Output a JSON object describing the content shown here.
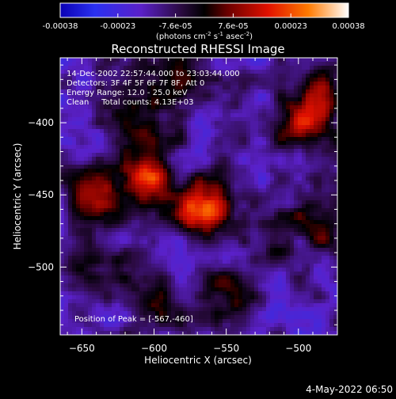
{
  "chart_data": {
    "type": "heatmap",
    "title": "Reconstructed RHESSI Image",
    "xlabel": "Heliocentric X (arcsec)",
    "ylabel": "Heliocentric Y (arcsec)",
    "xlim": [
      -665,
      -473
    ],
    "ylim": [
      -547,
      -355
    ],
    "x_ticks": [
      -650,
      -600,
      -550,
      -500
    ],
    "y_ticks": [
      -400,
      -450,
      -500
    ],
    "colorbar": {
      "range": [
        -0.00038,
        0.00038
      ],
      "ticks": [
        "-0.00038",
        "-0.00023",
        "-7.6e-05",
        "7.6e-05",
        "0.00023",
        "0.00038"
      ],
      "unit_parts": [
        "(photons cm",
        "-2",
        " s",
        "-1",
        " asec",
        "-2",
        ")"
      ]
    },
    "annotations": [
      "14-Dec-2002 22:57:44.000 to 23:03:44.000",
      "Detectors: 3F 4F 5F 6F 7F 8F, Att 0",
      "Energy Range: 12.0 - 25.0 keV",
      "Clean     Total counts: 4.13E+03"
    ],
    "peak_label": "Position of Peak = [-567,-460]",
    "peak": [
      -567,
      -460
    ],
    "sources": [
      {
        "x": -567,
        "y": -460,
        "value": 0.00038
      },
      {
        "x": -605,
        "y": -435,
        "value": 0.0003
      },
      {
        "x": -640,
        "y": -450,
        "value": 0.00022
      },
      {
        "x": -610,
        "y": -400,
        "value": 0.00018
      },
      {
        "x": -550,
        "y": -520,
        "value": 0.00016
      },
      {
        "x": -495,
        "y": -400,
        "value": 0.00018
      },
      {
        "x": -480,
        "y": -380,
        "value": 0.00017
      },
      {
        "x": -485,
        "y": -470,
        "value": 0.00016
      },
      {
        "x": -600,
        "y": -520,
        "value": 0.00012
      },
      {
        "x": -650,
        "y": -500,
        "value": 0.00012
      },
      {
        "x": -585,
        "y": -365,
        "value": 0.00012
      },
      {
        "x": -525,
        "y": -475,
        "value": 0.0001
      }
    ],
    "grid": false
  },
  "footer": {
    "timestamp": "4-May-2022 06:50"
  }
}
